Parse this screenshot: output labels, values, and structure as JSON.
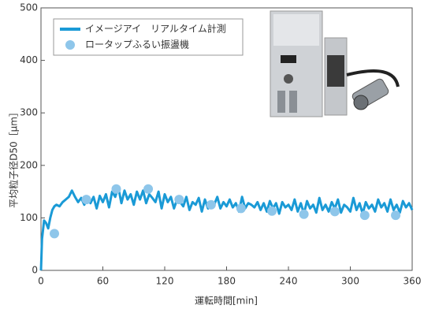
{
  "chart_data": {
    "type": "line",
    "x_label": "運転時間[min]",
    "y_label": "平均粒子径D50［µm］",
    "xlim": [
      0,
      360
    ],
    "xticks": [
      0,
      60,
      120,
      180,
      240,
      300,
      360
    ],
    "ylim": [
      0,
      500
    ],
    "yticks": [
      0,
      100,
      200,
      300,
      400,
      500
    ],
    "series": [
      {
        "name": "イメージアイ　リアルタイム計測",
        "type": "line",
        "color": "#1a9ad6",
        "x": [
          0,
          1,
          3,
          5,
          7,
          9,
          11,
          13,
          15,
          18,
          21,
          24,
          27,
          30,
          33,
          36,
          39,
          42,
          45,
          48,
          51,
          54,
          57,
          60,
          63,
          66,
          69,
          72,
          75,
          78,
          81,
          84,
          87,
          90,
          93,
          96,
          99,
          102,
          105,
          108,
          111,
          114,
          117,
          120,
          123,
          126,
          129,
          132,
          135,
          138,
          141,
          144,
          147,
          150,
          153,
          156,
          159,
          162,
          165,
          168,
          171,
          174,
          177,
          180,
          183,
          186,
          189,
          192,
          195,
          198,
          201,
          204,
          207,
          210,
          213,
          216,
          219,
          222,
          225,
          228,
          231,
          234,
          237,
          240,
          243,
          246,
          249,
          252,
          255,
          258,
          261,
          264,
          267,
          270,
          273,
          276,
          279,
          282,
          285,
          288,
          291,
          294,
          297,
          300,
          303,
          306,
          309,
          312,
          315,
          318,
          321,
          324,
          327,
          330,
          333,
          336,
          339,
          342,
          345,
          348,
          351,
          354,
          357,
          360
        ],
        "values": [
          0,
          60,
          95,
          90,
          80,
          100,
          115,
          122,
          125,
          122,
          130,
          135,
          140,
          152,
          140,
          130,
          138,
          125,
          140,
          128,
          140,
          118,
          142,
          130,
          145,
          120,
          150,
          140,
          158,
          128,
          152,
          135,
          145,
          125,
          150,
          135,
          152,
          128,
          145,
          138,
          130,
          150,
          118,
          145,
          130,
          140,
          118,
          135,
          130,
          122,
          140,
          115,
          130,
          125,
          138,
          112,
          135,
          118,
          130,
          125,
          140,
          118,
          130,
          122,
          135,
          120,
          128,
          112,
          140,
          118,
          128,
          125,
          120,
          130,
          115,
          128,
          112,
          132,
          118,
          128,
          108,
          130,
          120,
          125,
          115,
          135,
          112,
          128,
          108,
          132,
          118,
          125,
          110,
          138,
          115,
          125,
          112,
          130,
          118,
          135,
          110,
          125,
          120,
          112,
          138,
          115,
          128,
          108,
          130,
          118,
          125,
          112,
          135,
          120,
          128,
          112,
          135,
          115,
          125,
          110,
          132,
          120,
          128,
          115
        ]
      },
      {
        "name": "ロータップふるい振盪機",
        "type": "scatter",
        "color": "#8ec6ea",
        "x": [
          13,
          44,
          73,
          104,
          134,
          165,
          194,
          224,
          255,
          285,
          314,
          344
        ],
        "values": [
          70,
          135,
          155,
          155,
          135,
          125,
          118,
          113,
          107,
          112,
          105,
          105
        ]
      }
    ]
  }
}
